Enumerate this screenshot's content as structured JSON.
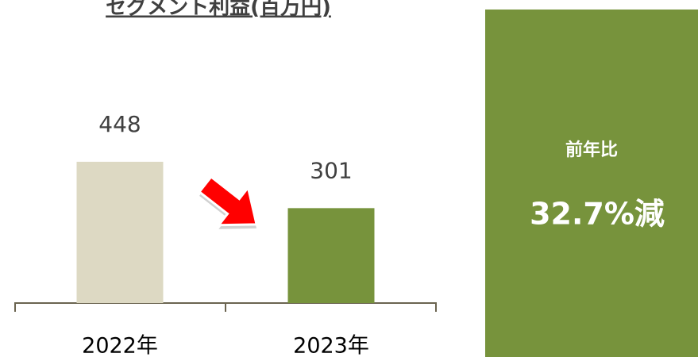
{
  "chart_data": {
    "type": "bar",
    "title": "セグメント利益(百万円)",
    "categories": [
      "2022年",
      "2023年"
    ],
    "values": [
      448,
      301
    ],
    "colors": [
      "#ddd9c3",
      "#77933c"
    ],
    "annotations": [
      "前年比",
      "32.7%減"
    ]
  }
}
